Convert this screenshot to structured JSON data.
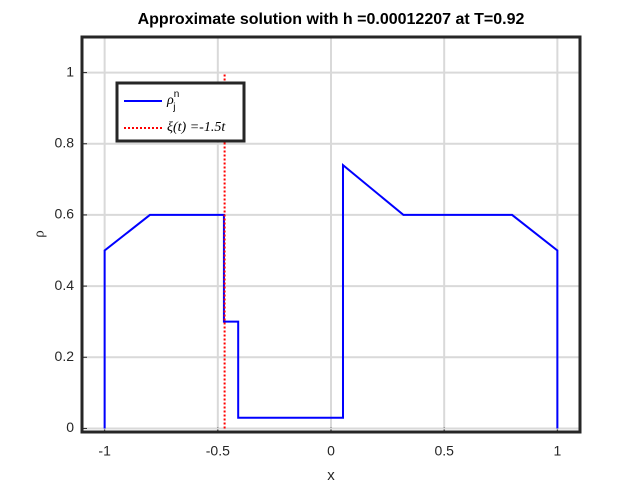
{
  "chart_data": {
    "type": "line",
    "title": "Approximate solution with h =0.00012207 at T=0.92",
    "xlabel": "x",
    "ylabel": "ρ",
    "xlim": [
      -1.1,
      1.1
    ],
    "ylim": [
      -0.01,
      1.1
    ],
    "xticks": [
      -1,
      -0.5,
      0,
      0.5,
      1
    ],
    "yticks": [
      0,
      0.2,
      0.4,
      0.6,
      0.8,
      1
    ],
    "grid": true,
    "legend_position": "upper-left",
    "series": [
      {
        "name": "ρ",
        "name_sub": "j",
        "name_sup": "n",
        "color": "#0000ff",
        "style": "solid",
        "x": [
          -1,
          -1,
          -0.8,
          -0.473,
          -0.473,
          -0.41,
          -0.41,
          -0.38,
          0.053,
          0.053,
          0.32,
          0.8,
          1,
          1
        ],
        "values": [
          0,
          0.5,
          0.6,
          0.6,
          0.3,
          0.3,
          0.03,
          0.03,
          0.03,
          0.74,
          0.6,
          0.6,
          0.5,
          0
        ]
      },
      {
        "name": "ξ(t) =-1.5t",
        "color": "#ff0000",
        "style": "dotted",
        "x": [
          -0.47,
          -0.47
        ],
        "values": [
          0,
          1
        ]
      }
    ]
  }
}
